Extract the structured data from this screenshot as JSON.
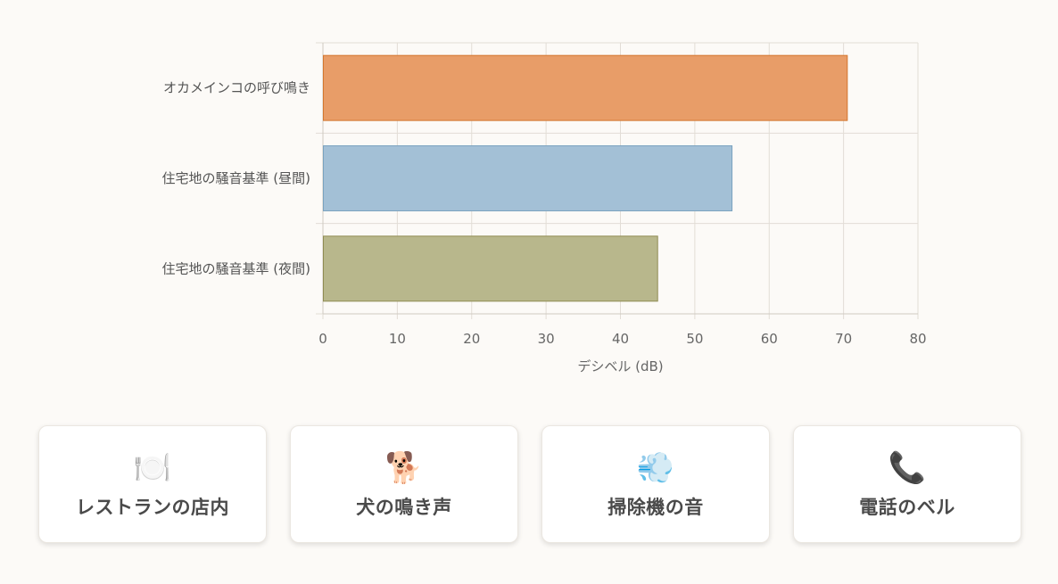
{
  "chart_data": {
    "type": "bar",
    "orientation": "horizontal",
    "title": "",
    "xlabel": "デシベル (dB)",
    "ylabel": "",
    "xlim": [
      0,
      80
    ],
    "xticks": [
      0,
      10,
      20,
      30,
      40,
      50,
      60,
      70,
      80
    ],
    "grid": true,
    "legend": "none",
    "categories": [
      "オカメインコの呼び鳴き",
      "住宅地の騒音基準 (昼間)",
      "住宅地の騒音基準 (夜間)"
    ],
    "values": [
      70.5,
      55,
      45
    ],
    "colors": [
      "#e89d68",
      "#a3c0d6",
      "#b8b78c"
    ],
    "border_colors": [
      "#d4762e",
      "#7aa2bf",
      "#8f8c52"
    ]
  },
  "cards": [
    {
      "icon": "🍽️",
      "icon_name": "fork-knife-plate-icon",
      "label": "レストランの店内"
    },
    {
      "icon": "🐕",
      "icon_name": "dog-icon",
      "label": "犬の鳴き声"
    },
    {
      "icon": "💨",
      "icon_name": "dash-wind-icon",
      "label": "掃除機の音"
    },
    {
      "icon": "📞",
      "icon_name": "telephone-icon",
      "label": "電話のベル"
    }
  ]
}
